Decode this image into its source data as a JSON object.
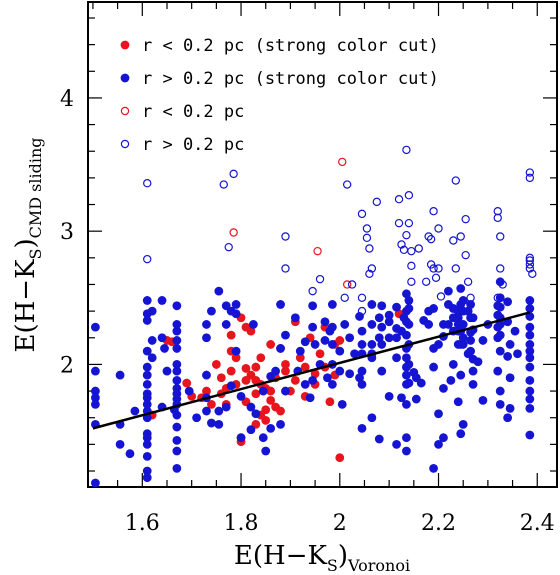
{
  "chart_data": {
    "type": "scatter",
    "xlabel": {
      "main": "E(H−K",
      "sub1": "S",
      "mid": ")",
      "sub2": "Voronoi"
    },
    "ylabel": {
      "main": "E(H−K",
      "sub1": "S",
      "mid": ")",
      "sub2": "CMD sliding"
    },
    "xlim": [
      1.49,
      2.44
    ],
    "ylim": [
      1.08,
      4.72
    ],
    "xticks": [
      1.6,
      1.8,
      2.0,
      2.2,
      2.4
    ],
    "xtick_labels": [
      "1.6",
      "1.8",
      "2",
      "2.2",
      "2.4"
    ],
    "yticks": [
      2,
      3,
      4
    ],
    "ytick_labels": [
      "2",
      "3",
      "4"
    ],
    "grid": false,
    "legend_position": "top-left",
    "colors": {
      "red": "#e8141e",
      "blue": "#1414d2",
      "line": "#000000"
    },
    "legend": [
      {
        "label": "r < 0.2 pc (strong color cut)",
        "color": "#e8141e",
        "filled": true
      },
      {
        "label": "r > 0.2 pc (strong color cut)",
        "color": "#1414d2",
        "filled": true
      },
      {
        "label": "r < 0.2 pc",
        "color": "#e8141e",
        "filled": false
      },
      {
        "label": "r > 0.2 pc",
        "color": "#1414d2",
        "filled": false
      }
    ],
    "fit_line": {
      "x": [
        1.5,
        2.385
      ],
      "y": [
        1.52,
        2.39
      ]
    },
    "series": [
      {
        "name": "r < 0.2 pc (strong color cut)",
        "color": "#e8141e",
        "filled": true,
        "x": [
          1.62,
          1.65,
          1.69,
          1.72,
          1.74,
          1.76,
          1.76,
          1.77,
          1.78,
          1.78,
          1.79,
          1.8,
          1.8,
          1.81,
          1.81,
          1.81,
          1.82,
          1.83,
          1.83,
          1.83,
          1.84,
          1.84,
          1.85,
          1.85,
          1.86,
          1.86,
          1.87,
          1.87,
          1.88,
          1.89,
          1.9,
          1.91,
          1.91,
          1.92,
          1.93,
          1.94,
          1.95,
          1.96,
          1.97,
          1.97,
          1.98,
          1.99,
          2.0,
          2.0,
          1.7,
          1.75,
          1.79,
          1.82,
          1.85,
          1.88,
          1.93,
          1.99,
          1.73,
          1.78,
          1.84,
          1.89,
          1.95,
          2.12,
          1.66,
          1.8,
          1.86,
          1.81,
          1.77,
          1.83
        ],
        "y": [
          1.62,
          2.18,
          1.86,
          1.75,
          1.7,
          1.9,
          1.78,
          1.82,
          2.1,
          1.95,
          1.85,
          2.35,
          1.45,
          1.72,
          1.88,
          2.28,
          1.92,
          1.98,
          1.78,
          1.55,
          2.05,
          1.85,
          1.82,
          1.66,
          2.15,
          1.73,
          1.9,
          1.68,
          2.12,
          1.95,
          1.8,
          1.88,
          2.32,
          2.05,
          1.98,
          2.2,
          1.93,
          2.08,
          1.98,
          2.28,
          1.72,
          2.15,
          2.18,
          1.3,
          1.76,
          2.0,
          2.05,
          2.25,
          1.58,
          1.65,
          1.76,
          1.92,
          1.8,
          2.22,
          1.62,
          2.0,
          1.85,
          2.38,
          2.17,
          1.42,
          1.8,
          1.97,
          1.7,
          1.88
        ]
      },
      {
        "name": "r > 0.2 pc (strong color cut)",
        "color": "#1414d2",
        "filled": true,
        "x": [
          1.505,
          1.505,
          1.505,
          1.505,
          1.505,
          1.505,
          1.505,
          1.555,
          1.555,
          1.555,
          1.575,
          1.585,
          1.61,
          1.61,
          1.61,
          1.61,
          1.61,
          1.61,
          1.61,
          1.61,
          1.61,
          1.61,
          1.61,
          1.61,
          1.61,
          1.61,
          1.61,
          1.61,
          1.61,
          1.61,
          1.62,
          1.62,
          1.62,
          1.64,
          1.64,
          1.64,
          1.645,
          1.65,
          1.665,
          1.67,
          1.67,
          1.67,
          1.67,
          1.67,
          1.67,
          1.67,
          1.67,
          1.67,
          1.67,
          1.67,
          1.67,
          1.67,
          1.67,
          1.67,
          1.67,
          1.67,
          1.695,
          1.71,
          1.73,
          1.73,
          1.73,
          1.73,
          1.73,
          1.74,
          1.74,
          1.755,
          1.755,
          1.755,
          1.77,
          1.77,
          1.77,
          1.78,
          1.78,
          1.79,
          1.79,
          1.79,
          1.8,
          1.8,
          1.82,
          1.82,
          1.825,
          1.83,
          1.845,
          1.845,
          1.85,
          1.86,
          1.86,
          1.87,
          1.88,
          1.88,
          1.88,
          1.89,
          1.89,
          1.91,
          1.915,
          1.92,
          1.93,
          1.93,
          1.94,
          1.945,
          1.945,
          1.945,
          1.95,
          1.96,
          1.97,
          1.97,
          1.975,
          1.98,
          1.985,
          1.985,
          1.985,
          1.985,
          1.985,
          2.0,
          2.0,
          2.005,
          2.01,
          2.02,
          2.02,
          2.03,
          2.04,
          2.04,
          2.045,
          2.045,
          2.045,
          2.045,
          2.045,
          2.045,
          2.065,
          2.065,
          2.065,
          2.065,
          2.065,
          2.065,
          2.08,
          2.08,
          2.08,
          2.085,
          2.085,
          2.085,
          2.085,
          2.1,
          2.1,
          2.1,
          2.1,
          2.115,
          2.115,
          2.115,
          2.115,
          2.115,
          2.125,
          2.125,
          2.13,
          2.135,
          2.135,
          2.135,
          2.135,
          2.135,
          2.135,
          2.135,
          2.135,
          2.135,
          2.135,
          2.135,
          2.135,
          2.14,
          2.14,
          2.14,
          2.14,
          2.14,
          2.14,
          2.15,
          2.155,
          2.155,
          2.165,
          2.17,
          2.18,
          2.18,
          2.19,
          2.19,
          2.19,
          2.19,
          2.2,
          2.2,
          2.2,
          2.21,
          2.21,
          2.21,
          2.21,
          2.22,
          2.22,
          2.22,
          2.225,
          2.23,
          2.23,
          2.23,
          2.23,
          2.24,
          2.24,
          2.24,
          2.24,
          2.24,
          2.24,
          2.245,
          2.245,
          2.245,
          2.245,
          2.245,
          2.245,
          2.245,
          2.245,
          2.25,
          2.25,
          2.25,
          2.25,
          2.25,
          2.25,
          2.26,
          2.26,
          2.265,
          2.265,
          2.265,
          2.265,
          2.265,
          2.27,
          2.27,
          2.27,
          2.27,
          2.27,
          2.28,
          2.29,
          2.29,
          2.3,
          2.32,
          2.32,
          2.32,
          2.32,
          2.32,
          2.325,
          2.325,
          2.325,
          2.325,
          2.325,
          2.325,
          2.325,
          2.325,
          2.325,
          2.34,
          2.34,
          2.34,
          2.34,
          2.345,
          2.345,
          2.345,
          2.355,
          2.36,
          2.385,
          2.385,
          2.385,
          2.385,
          2.385,
          2.385,
          2.385,
          2.385,
          2.385,
          2.385,
          2.385,
          2.385,
          2.385,
          2.385
        ],
        "y": [
          2.28,
          1.95,
          1.8,
          1.75,
          1.7,
          1.55,
          1.11,
          1.92,
          1.55,
          1.4,
          1.33,
          1.65,
          2.48,
          2.38,
          2.33,
          2.1,
          1.98,
          1.92,
          1.85,
          1.78,
          1.75,
          1.7,
          1.65,
          1.6,
          1.45,
          1.4,
          1.31,
          1.2,
          1.15,
          1.48,
          2.4,
          2.18,
          2.05,
          2.48,
          2.2,
          1.68,
          2.12,
          1.95,
          1.66,
          2.44,
          2.3,
          2.25,
          2.18,
          2.12,
          2.0,
          1.95,
          1.88,
          1.82,
          1.78,
          1.74,
          1.7,
          1.62,
          1.53,
          1.43,
          1.35,
          1.22,
          1.8,
          1.6,
          2.3,
          2.2,
          1.92,
          1.75,
          1.65,
          2.4,
          1.56,
          2.55,
          1.65,
          1.55,
          2.44,
          2.3,
          1.68,
          2.4,
          1.84,
          2.45,
          2.38,
          2.1,
          1.45,
          1.76,
          1.68,
          1.51,
          2.3,
          1.63,
          1.45,
          1.8,
          1.35,
          1.91,
          1.52,
          1.95,
          2.45,
          2.12,
          1.55,
          2.22,
          1.8,
          2.35,
          1.95,
          2.1,
          2.17,
          1.85,
          1.75,
          2.44,
          2.28,
          1.88,
          2.15,
          2.0,
          2.32,
          2.18,
          1.9,
          2.25,
          2.45,
          2.28,
          2.15,
          2.0,
          1.85,
          2.1,
          1.95,
          1.7,
          2.3,
          1.93,
          2.2,
          2.08,
          1.9,
          2.36,
          2.25,
          2.15,
          2.08,
          1.95,
          1.85,
          1.52,
          2.45,
          2.3,
          2.15,
          2.08,
          2.05,
          1.6,
          1.44,
          2.35,
          2.2,
          2.44,
          2.28,
          2.15,
          1.95,
          2.37,
          2.32,
          2.2,
          1.76,
          2.43,
          2.27,
          2.2,
          2.05,
          1.4,
          2.25,
          1.75,
          2.35,
          2.53,
          2.4,
          2.32,
          2.22,
          2.12,
          2.05,
          1.98,
          1.92,
          1.85,
          1.7,
          1.45,
          1.35,
          2.48,
          2.42,
          2.3,
          2.15,
          2.0,
          1.86,
          1.94,
          1.74,
          1.9,
          1.86,
          2.33,
          2.4,
          2.3,
          2.42,
          2.12,
          1.98,
          1.22,
          2.15,
          1.63,
          1.4,
          2.3,
          2.21,
          1.82,
          1.45,
          2.55,
          2.45,
          2.3,
          1.88,
          2.42,
          2.35,
          2.25,
          2.0,
          2.4,
          2.35,
          2.3,
          2.25,
          2.15,
          1.72,
          2.57,
          2.45,
          2.4,
          2.3,
          2.25,
          2.15,
          1.92,
          1.48,
          2.48,
          2.4,
          2.3,
          2.2,
          2.15,
          1.55,
          2.4,
          2.08,
          2.45,
          2.35,
          2.24,
          2.18,
          2.1,
          2.35,
          2.26,
          2.04,
          1.95,
          1.85,
          2.02,
          2.18,
          1.73,
          2.3,
          2.44,
          2.37,
          2.28,
          2.2,
          1.95,
          2.62,
          2.5,
          2.43,
          2.35,
          2.3,
          2.22,
          2.1,
          1.8,
          1.7,
          2.47,
          2.32,
          2.06,
          1.6,
          2.15,
          1.9,
          1.67,
          2.25,
          2.08,
          2.48,
          2.42,
          2.36,
          2.28,
          2.22,
          2.15,
          2.1,
          2.05,
          1.98,
          1.88,
          1.8,
          1.74,
          1.67,
          1.47
        ]
      },
      {
        "name": "r < 0.2 pc",
        "color": "#e8141e",
        "filled": false,
        "x": [
          1.785,
          1.955,
          2.005,
          2.015
        ],
        "y": [
          2.99,
          2.85,
          3.52,
          2.6
        ]
      },
      {
        "name": "r > 0.2 pc",
        "color": "#1414d2",
        "filled": false,
        "x": [
          1.61,
          1.61,
          1.765,
          1.775,
          1.785,
          1.89,
          1.945,
          1.96,
          2.015,
          2.025,
          2.045,
          2.045,
          2.055,
          2.055,
          2.06,
          2.065,
          2.06,
          2.075,
          2.12,
          2.12,
          2.125,
          2.13,
          2.135,
          2.135,
          2.14,
          2.145,
          2.14,
          2.145,
          2.145,
          2.16,
          2.175,
          2.18,
          2.185,
          2.185,
          2.19,
          2.19,
          2.195,
          2.2,
          2.2,
          2.205,
          2.23,
          2.235,
          2.235,
          2.245,
          2.255,
          2.255,
          2.26,
          2.265,
          2.32,
          2.32,
          2.325,
          2.325,
          2.33,
          2.385,
          2.385,
          2.385,
          2.385,
          2.385,
          2.385,
          2.39,
          1.89,
          2.01,
          2.045,
          2.32
        ],
        "y": [
          3.36,
          2.79,
          3.35,
          2.88,
          3.43,
          2.96,
          2.55,
          2.64,
          3.35,
          2.6,
          3.13,
          2.5,
          3.02,
          2.95,
          2.87,
          2.72,
          2.68,
          3.22,
          3.24,
          3.06,
          2.9,
          2.86,
          3.61,
          2.97,
          3.27,
          2.62,
          3.06,
          2.85,
          2.74,
          2.87,
          2.62,
          2.96,
          2.94,
          2.75,
          2.72,
          3.15,
          2.65,
          3.02,
          2.72,
          2.51,
          2.93,
          3.38,
          2.72,
          2.96,
          3.09,
          2.82,
          2.62,
          2.5,
          3.15,
          3.1,
          2.96,
          2.72,
          2.6,
          3.44,
          3.4,
          2.8,
          2.78,
          2.75,
          2.72,
          2.68,
          2.72,
          2.5,
          2.4,
          2.5
        ]
      }
    ]
  }
}
